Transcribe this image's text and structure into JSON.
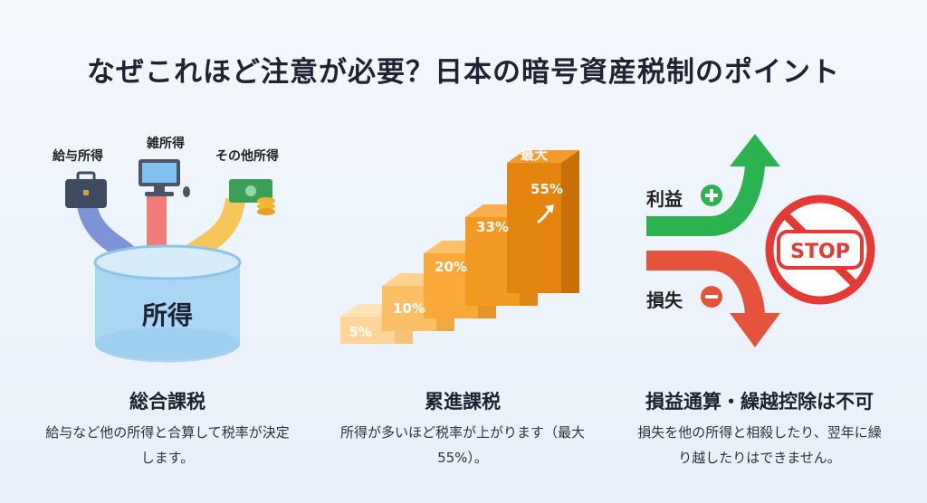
{
  "title": "なぜこれほど注意が必要？日本の暗号資産税制のポイント",
  "panel1": {
    "labels": {
      "salary": "給与所得",
      "misc": "雑所得",
      "other": "その他所得"
    },
    "cylinder_label": "所得",
    "heading": "総合課税",
    "description": "給与など他の所得と合算して税率が決定します。"
  },
  "panel2": {
    "steps": [
      "5%",
      "10%",
      "20%",
      "33%",
      "55%"
    ],
    "top_label": "最大",
    "heading": "累進課税",
    "description": "所得が多いほど税率が上がります（最大55%）。"
  },
  "panel3": {
    "profit_label": "利益",
    "loss_label": "損失",
    "stop_text": "STOP",
    "heading": "損益通算・繰越控除は不可",
    "description": "損失を他の所得と相殺したり、翌年に繰り越したりはできません。",
    "colors": {
      "profit": "#2bb34f",
      "loss": "#e6533c",
      "stop": "#e53935"
    }
  }
}
